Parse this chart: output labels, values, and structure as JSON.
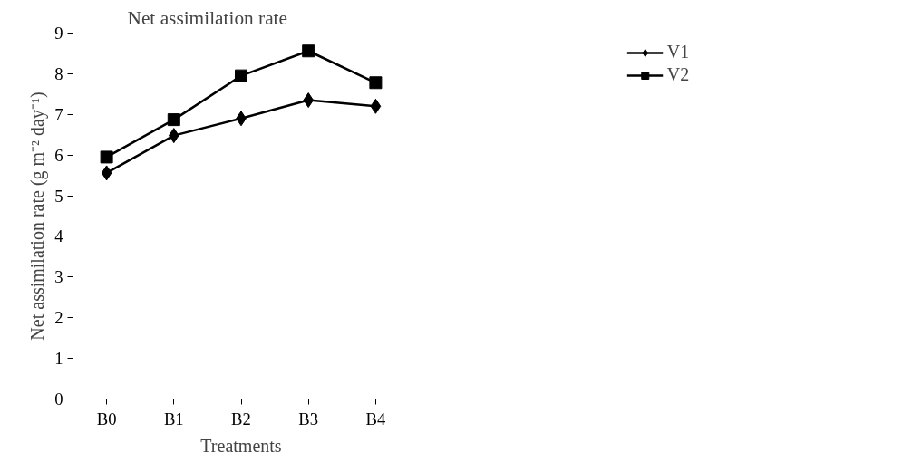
{
  "chart_data": {
    "type": "line",
    "title": "Net assimilation rate",
    "xlabel": "Treatments",
    "ylabel": "Net assimilation rate (g m⁻² day⁻¹)",
    "categories": [
      "B0",
      "B1",
      "B2",
      "B3",
      "B4"
    ],
    "series": [
      {
        "name": "V1",
        "color": "#000000",
        "marker": "diamond",
        "values": [
          5.56,
          6.48,
          6.9,
          7.35,
          7.2
        ]
      },
      {
        "name": "V2",
        "color": "#000000",
        "marker": "square",
        "values": [
          5.95,
          6.87,
          7.95,
          8.56,
          7.78
        ]
      }
    ],
    "ylim": [
      0,
      9
    ],
    "yticks": [
      0,
      1,
      2,
      3,
      4,
      5,
      6,
      7,
      8,
      9
    ],
    "grid": false,
    "legend": "top right",
    "line_style": "solid"
  }
}
